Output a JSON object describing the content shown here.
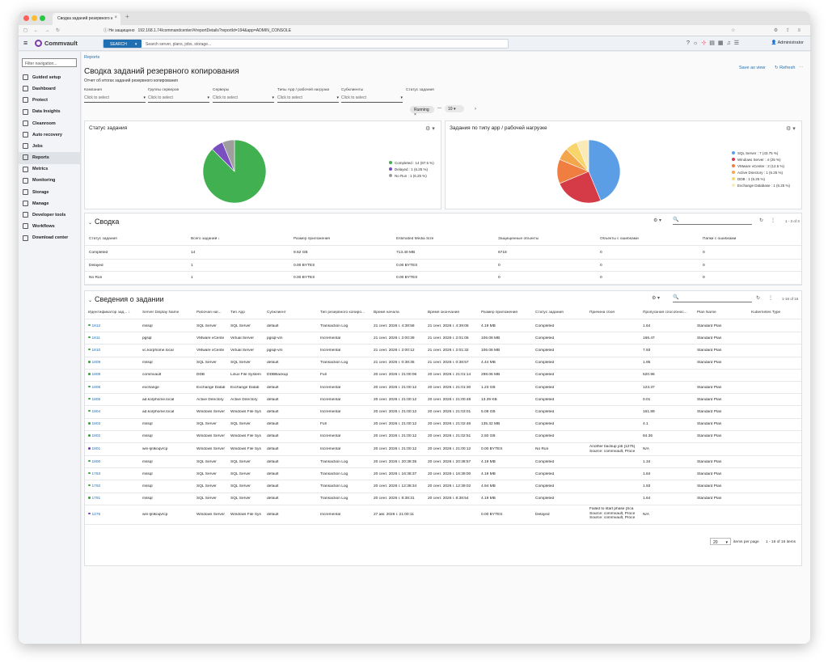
{
  "browser": {
    "tab_title": "Сводка заданий резервного к",
    "tab_close": "×",
    "new_tab": "+",
    "nav": "◻ ← → ↻",
    "address_warning": "ⓘ Не защищено",
    "address_url": "192.168.1.74/commandcenter/#/reportDetails?reportId=194&app=ADMIN_CONSOLE",
    "right_icons": "⚙ ⇪ ≡",
    "star": "☆"
  },
  "app": {
    "menu": "≡",
    "brand": "Commvault",
    "search_btn": "SEARCH",
    "search_caret": "▾",
    "search_placeholder": "Search server, plans, jobs, storage...",
    "header_icons": [
      "?",
      "☼",
      "⊹",
      "▤",
      "▦",
      "♫",
      "☰"
    ],
    "user": "👤 Administrator"
  },
  "sidebar": {
    "filter_placeholder": "Filter navigation...",
    "items": [
      {
        "label": "Guided setup"
      },
      {
        "label": "Dashboard"
      },
      {
        "label": "Protect"
      },
      {
        "label": "Data Insights"
      },
      {
        "label": "Cleanroom"
      },
      {
        "label": "Auto recovery"
      },
      {
        "label": "Jobs"
      },
      {
        "label": "Reports"
      },
      {
        "label": "Metrics"
      },
      {
        "label": "Monitoring"
      },
      {
        "label": "Storage"
      },
      {
        "label": "Manage"
      },
      {
        "label": "Developer tools"
      },
      {
        "label": "Workflows"
      },
      {
        "label": "Download center"
      }
    ]
  },
  "page": {
    "breadcrumb": "Reports",
    "title": "Сводка заданий резервного копирования",
    "subtitle": "Отчет об итогах заданий резервного копирования",
    "save_as_view": "Save as view",
    "refresh": "↻ Refresh",
    "more": "⋯"
  },
  "filters": [
    {
      "label": "Компания",
      "value": "Click to select"
    },
    {
      "label": "Группы серверов",
      "value": "Click to select"
    },
    {
      "label": "Серверы",
      "value": "Click to select"
    },
    {
      "label": "Типы App / рабочей нагрузки",
      "value": "Click to select"
    },
    {
      "label": "Субклиенты",
      "value": "Click to select"
    },
    {
      "label": "Статус задания",
      "value": ""
    }
  ],
  "status_filter": {
    "chip": "Running",
    "chip_x": "×",
    "dash": "—",
    "count": "10",
    "next": "›"
  },
  "status_chart": {
    "title": "Статус задания",
    "gear": "⚙ ▾",
    "colors": [
      "#41b050",
      "#7a4fc0",
      "#9e9e9e"
    ]
  },
  "workload_chart": {
    "title": "Задания по типу app / рабочей нагрузке",
    "gear": "⚙ ▾",
    "colors": [
      "#5b9ee6",
      "#d53b47",
      "#f07e41",
      "#f3a64c",
      "#f8d56b",
      "#faeab7"
    ]
  },
  "chart_data": [
    {
      "type": "pie",
      "title": "Статус задания",
      "categories": [
        "Completed",
        "Delayed",
        "No Run"
      ],
      "values": [
        14,
        1,
        1
      ],
      "legend": [
        "Completed : 14 (87.5 %)",
        "Delayed : 1 (6.25 %)",
        "No Run : 1 (6.25 %)"
      ]
    },
    {
      "type": "pie",
      "title": "Задания по типу app / рабочей нагрузке",
      "categories": [
        "SQL Server",
        "Windows Server",
        "VMware vCenter",
        "Active Directory",
        "DDB",
        "Exchange Database"
      ],
      "values": [
        7,
        4,
        2,
        1,
        1,
        1
      ],
      "legend": [
        "SQL Server : 7 (43.75 %)",
        "Windows Server : 4 (25 %)",
        "VMware vCenter : 2 (12.5 %)",
        "Active Directory : 1 (6.25 %)",
        "DDB : 1 (6.25 %)",
        "Exchange Database : 1 (6.25 %)"
      ]
    }
  ],
  "summary": {
    "title": "Сводка",
    "chevron": "⌄",
    "gear": "⚙ ▾",
    "search": "🔍",
    "refresh": "↻",
    "more": "⋮",
    "range": "1 - 3 of 3",
    "columns": [
      "Статус задания",
      "Всего заданий ↓",
      "Размер приложения",
      "Estimated Media Size",
      "Защищенные объекты",
      "Объекты с ошибками",
      "Папки с ошибками"
    ],
    "rows": [
      [
        "Completed",
        "14",
        "9.52 GB",
        "713.40 MB",
        "6718",
        "0",
        "0"
      ],
      [
        "Delayed",
        "1",
        "0.00 BYTES",
        "0.00 BYTES",
        "0",
        "0",
        "0"
      ],
      [
        "No Run",
        "1",
        "0.00 BYTES",
        "0.00 BYTES",
        "0",
        "0",
        "0"
      ]
    ]
  },
  "details": {
    "title": "Сведения о задании",
    "chevron": "⌄",
    "gear": "⚙ ▾",
    "search": "🔍",
    "refresh": "↻",
    "more": "⋮",
    "range": "1-16 of 16",
    "columns": [
      "Идентификатор зад... ↓",
      "Server Display Name",
      "Рабочая наг...",
      "Тип App",
      "Субклиент",
      "Тип резервного копиро...",
      "Время начала",
      "Время окончания",
      "Размер приложения",
      "Статус задания",
      "Причина сбоя",
      "Пропускная способнос...",
      "Plan Name",
      "Kubernetes Type"
    ],
    "rows": [
      {
        "id": "1812",
        "c": [
          "mssql",
          "SQL Server",
          "SQL Server",
          "default",
          "Transaction Log",
          "21 сент. 2026 г. 4:38:58",
          "21 сент. 2026 г. 4:39:06",
          "4.19 MB",
          "Completed",
          "",
          "1.64",
          "Standard Plan",
          ""
        ]
      },
      {
        "id": "1811",
        "c": [
          "pgsql",
          "VMware vCente",
          "Virtual Server",
          "pgsql-vm",
          "Incremental",
          "21 сент. 2026 г. 2:00:39",
          "21 сент. 2026 г. 2:01:06",
          "106.08 MB",
          "Completed",
          "",
          "166.47",
          "Standard Plan",
          ""
        ]
      },
      {
        "id": "1810",
        "c": [
          "vc.korphome.local",
          "VMware vCente",
          "Virtual Server",
          "pgsql-vm",
          "Incremental",
          "21 сент. 2026 г. 2:00:12",
          "21 сент. 2026 г. 2:01:32",
          "106.08 MB",
          "Completed",
          "",
          "7.93",
          "Standard Plan",
          ""
        ]
      },
      {
        "id": "1809",
        "c": [
          "mssql",
          "SQL Server",
          "SQL Server",
          "default",
          "Transaction Log",
          "21 сент. 2026 г. 0:38:35",
          "21 сент. 2026 г. 0:38:57",
          "4.44 MB",
          "Completed",
          "",
          "1.95",
          "Standard Plan",
          ""
        ]
      },
      {
        "id": "1808",
        "c": [
          "commvault",
          "DDB",
          "Linux File System",
          "DDBBackup",
          "Full",
          "20 сент. 2026 г. 21:00:06",
          "20 сент. 2026 г. 21:01:14",
          "298.06 MB",
          "Completed",
          "",
          "520.96",
          "",
          ""
        ]
      },
      {
        "id": "1806",
        "c": [
          "exchange",
          "Exchange Datab",
          "Exchange Datab",
          "default",
          "Incremental",
          "20 сент. 2026 г. 21:00:12",
          "20 сент. 2026 г. 21:01:30",
          "1.23 GB",
          "Completed",
          "",
          "123.37",
          "Standard Plan",
          ""
        ]
      },
      {
        "id": "1805",
        "c": [
          "ad.korphome.local",
          "Active Directory",
          "Active Directory",
          "default",
          "Incremental",
          "20 сент. 2026 г. 21:00:12",
          "20 сент. 2026 г. 21:00:48",
          "13.39 KB",
          "Completed",
          "",
          "0.01",
          "Standard Plan",
          ""
        ]
      },
      {
        "id": "1804",
        "c": [
          "ad.korphome.local",
          "Windows Server",
          "Windows File Sys",
          "default",
          "Incremental",
          "20 сент. 2026 г. 21:00:12",
          "20 сент. 2026 г. 21:03:01",
          "5.08 GB",
          "Completed",
          "",
          "161.89",
          "Standard Plan",
          ""
        ]
      },
      {
        "id": "1803",
        "c": [
          "mssql",
          "SQL Server",
          "SQL Server",
          "default",
          "Full",
          "20 сент. 2026 г. 21:00:12",
          "20 сент. 2026 г. 21:02:46",
          "135.32 MB",
          "Completed",
          "",
          "4.1",
          "Standard Plan",
          ""
        ]
      },
      {
        "id": "1802",
        "c": [
          "mssql",
          "Windows Server",
          "Windows File Sys",
          "default",
          "Incremental",
          "20 сент. 2026 г. 21:00:12",
          "20 сент. 2026 г. 21:02:51",
          "2.50 GB",
          "Completed",
          "",
          "84.36",
          "Standard Plan",
          ""
        ]
      },
      {
        "id": "1801",
        "c": [
          "win-ljnlkoqvrcp",
          "Windows Server",
          "Windows File Sys",
          "default",
          "Incremental",
          "20 сент. 2026 г. 21:00:12",
          "20 сент. 2026 г. 21:00:12",
          "0.00 BYTES",
          "No Run",
          "Another backup job [1276] Source: commvault, Proce",
          "N/A",
          "",
          ""
        ]
      },
      {
        "id": "1800",
        "c": [
          "mssql",
          "SQL Server",
          "SQL Server",
          "default",
          "Transaction Log",
          "20 сент. 2026 г. 20:38:35",
          "20 сент. 2026 г. 20:38:57",
          "4.19 MB",
          "Completed",
          "",
          "1.34",
          "Standard Plan",
          ""
        ]
      },
      {
        "id": "1793",
        "c": [
          "mssql",
          "SQL Server",
          "SQL Server",
          "default",
          "Transaction Log",
          "20 сент. 2026 г. 16:38:37",
          "20 сент. 2026 г. 16:39:00",
          "4.19 MB",
          "Completed",
          "",
          "1.84",
          "Standard Plan",
          ""
        ]
      },
      {
        "id": "1792",
        "c": [
          "mssql",
          "SQL Server",
          "SQL Server",
          "default",
          "Transaction Log",
          "20 сент. 2026 г. 12:38:34",
          "20 сент. 2026 г. 12:39:02",
          "4.94 MB",
          "Completed",
          "",
          "1.93",
          "Standard Plan",
          ""
        ]
      },
      {
        "id": "1791",
        "c": [
          "mssql",
          "SQL Server",
          "SQL Server",
          "default",
          "Transaction Log",
          "20 сент. 2026 г. 8:38:31",
          "20 сент. 2026 г. 8:38:54",
          "4.19 MB",
          "Completed",
          "",
          "1.64",
          "Standard Plan",
          ""
        ]
      },
      {
        "id": "1276",
        "c": [
          "win-ljnlkoqvrcp",
          "Windows Server",
          "Windows File Sys",
          "default",
          "Incremental",
          "27 авг. 2026 г. 21:00:11",
          "",
          "0.00 BYTES",
          "Delayed",
          "Failed to start phase [Sca Source: commvault, Proce Source: commvault, Proce",
          "N/A",
          "",
          ""
        ]
      }
    ],
    "per_page": "20",
    "per_page_caret": "▾",
    "per_page_label": "items per page",
    "page_range": "1 - 16 of 16 items"
  }
}
